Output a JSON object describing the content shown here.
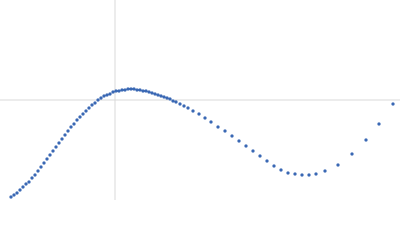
{
  "chart_data": {
    "type": "scatter",
    "x": [
      -104,
      -101,
      -98,
      -95,
      -92,
      -89,
      -86,
      -83,
      -80,
      -77,
      -74,
      -71,
      -68,
      -65,
      -62,
      -59,
      -56,
      -53,
      -50,
      -47,
      -44,
      -41,
      -38,
      -35,
      -32,
      -29,
      -26,
      -23,
      -20,
      -17,
      -14,
      -11,
      -8,
      -5,
      -2,
      1,
      4,
      7,
      10,
      13,
      16,
      19,
      22,
      25,
      28,
      31,
      34,
      37,
      40,
      43,
      46,
      49,
      52,
      55,
      58,
      61,
      65,
      69,
      73,
      78,
      84,
      90,
      96,
      103,
      110,
      117,
      124,
      131,
      138,
      145,
      152,
      159,
      166,
      173,
      180,
      187,
      194,
      201,
      210,
      223,
      237,
      251,
      264,
      278
    ],
    "values": [
      -97,
      -95,
      -93,
      -90,
      -87,
      -84,
      -82,
      -78,
      -75,
      -71,
      -67,
      -63,
      -59,
      -55,
      -51,
      -47,
      -43,
      -39,
      -35,
      -31,
      -27,
      -24,
      -20,
      -17,
      -14,
      -11,
      -8,
      -5,
      -3,
      0,
      2,
      4,
      5,
      6,
      8,
      9,
      9,
      10,
      10,
      11,
      11,
      11,
      10,
      10,
      9,
      9,
      8,
      7,
      6,
      5,
      4,
      3,
      2,
      1,
      -1,
      -2,
      -4,
      -6,
      -8,
      -11,
      -14,
      -18,
      -22,
      -27,
      -31,
      -36,
      -41,
      -46,
      -51,
      -56,
      -61,
      -66,
      -70,
      -73,
      -74,
      -75,
      -75,
      -74,
      -71,
      -65,
      -54,
      -40,
      -24,
      -4
    ],
    "color": "#3a68b4",
    "xlim": [
      -115,
      285
    ],
    "ylim": [
      -100,
      100
    ],
    "zero_lines": true
  }
}
